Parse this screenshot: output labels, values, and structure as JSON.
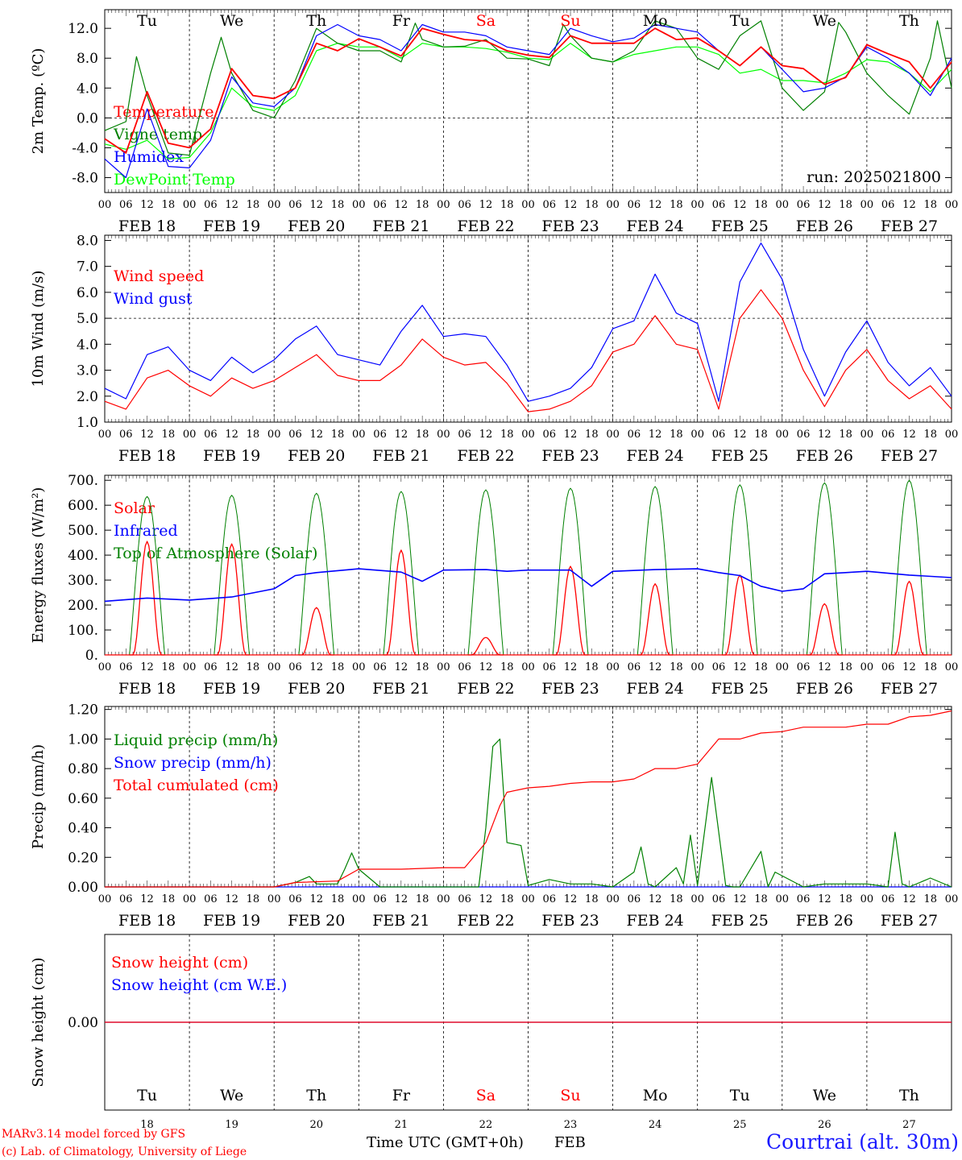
{
  "days": {
    "dates": [
      "FEB 18",
      "FEB 19",
      "FEB 20",
      "FEB 21",
      "FEB 22",
      "FEB 23",
      "FEB 24",
      "FEB 25",
      "FEB 26",
      "FEB 27"
    ],
    "weekdays": [
      "Tu",
      "We",
      "Th",
      "Fr",
      "Sa",
      "Su",
      "Mo",
      "Tu",
      "We",
      "Th"
    ],
    "day_numbers": [
      "18",
      "19",
      "20",
      "21",
      "22",
      "23",
      "24",
      "25",
      "26",
      "27"
    ],
    "hour_ticks": [
      "00",
      "06",
      "12",
      "18"
    ],
    "last_tick": "00",
    "weekend_color": "#ff0000",
    "weekday_color": "#000000",
    "weekend_indices": [
      4,
      5
    ]
  },
  "footer": {
    "model_line": "MARv3.14 model forced by GFS",
    "credit_line": "(c) Lab. of Climatology, University of Liege",
    "xlabel": "Time UTC (GMT+0h)",
    "month": "FEB",
    "location": "Courtrai (alt. 30m)"
  },
  "run_label": "run: 2025021800",
  "chart_data": [
    {
      "id": "temperature",
      "type": "line",
      "ylabel": "2m Temp. (ºC)",
      "ylim": [
        -10,
        14.5
      ],
      "yticks": [
        "-8.0",
        "-4.0",
        "0.0",
        "4.0",
        "8.0",
        "12.0"
      ],
      "reference_line": 0,
      "x_unit": "hours since FEB 18 00 UTC",
      "series": [
        {
          "name": "Temperature",
          "color": "#ff0000",
          "x": [
            0,
            6,
            12,
            18,
            24,
            30,
            36,
            42,
            48,
            54,
            60,
            66,
            72,
            78,
            84,
            90,
            96,
            102,
            108,
            114,
            120,
            126,
            132,
            138,
            144,
            150,
            156,
            162,
            168,
            174,
            180,
            186,
            192,
            198,
            204,
            210,
            216,
            222,
            228,
            234,
            240
          ],
          "values": [
            -2.8,
            -4.7,
            3.5,
            -3.4,
            -4,
            -1.5,
            6.6,
            3,
            2.6,
            4,
            10,
            9,
            10.6,
            9.5,
            8.3,
            12,
            11.2,
            10.5,
            10.3,
            9,
            8.4,
            8.1,
            11,
            10,
            10,
            10,
            12,
            10.5,
            10.7,
            9,
            7,
            9.5,
            7,
            6.6,
            4.5,
            5.4,
            9.8,
            8.6,
            7.5,
            4,
            7.5
          ]
        },
        {
          "name": "Vigne temp",
          "color": "#008000",
          "x": [
            0,
            6,
            9,
            12,
            18,
            24,
            30,
            33,
            36,
            42,
            48,
            54,
            60,
            66,
            72,
            78,
            84,
            88,
            90,
            96,
            102,
            108,
            114,
            120,
            126,
            130,
            132,
            138,
            144,
            150,
            156,
            162,
            168,
            174,
            180,
            186,
            192,
            198,
            204,
            208,
            210,
            216,
            222,
            228,
            234,
            236,
            240
          ],
          "values": [
            -1.7,
            -0.5,
            8.2,
            3,
            -4.7,
            -5,
            6,
            10.8,
            6,
            1,
            0,
            5,
            12,
            10,
            9,
            9,
            7.5,
            12.7,
            10.5,
            9.5,
            9.6,
            10.5,
            8,
            7.9,
            7,
            12.5,
            11,
            8,
            7.5,
            9,
            13,
            12,
            8,
            6.5,
            11,
            13,
            4,
            1,
            3.5,
            12.8,
            11.5,
            6,
            3,
            0.5,
            8,
            13,
            4
          ]
        },
        {
          "name": "Humidex",
          "color": "#0000ff",
          "x": [
            0,
            6,
            12,
            18,
            24,
            30,
            36,
            42,
            48,
            54,
            60,
            66,
            72,
            78,
            84,
            90,
            96,
            102,
            108,
            114,
            120,
            126,
            132,
            138,
            144,
            150,
            156,
            162,
            168,
            174,
            180,
            186,
            192,
            198,
            204,
            210,
            216,
            222,
            228,
            234,
            240
          ],
          "values": [
            -5.5,
            -8,
            1.2,
            -6.5,
            -6.7,
            -3,
            5.5,
            2,
            1.5,
            4,
            11,
            12.5,
            11,
            10.5,
            9,
            12.5,
            11.5,
            11.5,
            11,
            9.5,
            9,
            8.5,
            12,
            11,
            10.2,
            10.7,
            12.5,
            12,
            11.5,
            9,
            7,
            9.5,
            6.5,
            3.5,
            4,
            5.5,
            9.5,
            8,
            6,
            3,
            8
          ]
        },
        {
          "name": "DewPoint Temp",
          "color": "#00ff00",
          "x": [
            0,
            6,
            12,
            18,
            24,
            30,
            36,
            42,
            48,
            54,
            60,
            66,
            72,
            78,
            84,
            90,
            96,
            102,
            108,
            114,
            120,
            126,
            132,
            138,
            144,
            150,
            156,
            162,
            168,
            174,
            180,
            186,
            192,
            198,
            204,
            210,
            216,
            222,
            228,
            234,
            240
          ],
          "values": [
            -3.5,
            -4.2,
            -3,
            -5.5,
            -5.3,
            -2,
            4,
            1.5,
            1,
            3,
            9,
            10,
            9.5,
            9.5,
            8,
            10,
            9.5,
            9.5,
            9.3,
            8.8,
            8,
            7.8,
            10,
            8,
            7.5,
            8.5,
            9,
            9.5,
            9.5,
            8.5,
            6,
            6.5,
            5,
            5,
            4.7,
            6,
            7.8,
            7.5,
            6,
            3.5,
            6.5
          ]
        }
      ]
    },
    {
      "id": "wind",
      "type": "line",
      "ylabel": "10m Wind (m/s)",
      "ylim": [
        1,
        8.2
      ],
      "yticks": [
        "1.0",
        "2.0",
        "3.0",
        "4.0",
        "5.0",
        "6.0",
        "7.0",
        "8.0"
      ],
      "reference_line": 5,
      "x_unit": "hours since FEB 18 00 UTC",
      "series": [
        {
          "name": "Wind speed",
          "color": "#ff0000",
          "x": [
            0,
            6,
            12,
            18,
            24,
            30,
            36,
            42,
            48,
            54,
            60,
            66,
            72,
            78,
            84,
            90,
            96,
            102,
            108,
            114,
            120,
            126,
            132,
            138,
            144,
            150,
            156,
            162,
            168,
            174,
            180,
            186,
            192,
            198,
            204,
            210,
            216,
            222,
            228,
            234,
            240
          ],
          "values": [
            1.8,
            1.5,
            2.7,
            3,
            2.4,
            2,
            2.7,
            2.3,
            2.6,
            3.1,
            3.6,
            2.8,
            2.6,
            2.6,
            3.2,
            4.2,
            3.5,
            3.2,
            3.3,
            2.5,
            1.4,
            1.5,
            1.8,
            2.4,
            3.7,
            4,
            5.1,
            4,
            3.8,
            1.5,
            5,
            6.1,
            5,
            3,
            1.6,
            3,
            3.8,
            2.6,
            1.9,
            2.4,
            1.5
          ]
        },
        {
          "name": "Wind gust",
          "color": "#0000ff",
          "x": [
            0,
            6,
            12,
            18,
            24,
            30,
            36,
            42,
            48,
            54,
            60,
            66,
            72,
            78,
            84,
            90,
            96,
            102,
            108,
            114,
            120,
            126,
            132,
            138,
            144,
            150,
            156,
            162,
            168,
            174,
            180,
            186,
            192,
            198,
            204,
            210,
            216,
            222,
            228,
            234,
            240
          ],
          "values": [
            2.3,
            1.9,
            3.6,
            3.9,
            3,
            2.6,
            3.5,
            2.9,
            3.4,
            4.2,
            4.7,
            3.6,
            3.4,
            3.2,
            4.5,
            5.5,
            4.3,
            4.4,
            4.3,
            3.2,
            1.8,
            2,
            2.3,
            3.1,
            4.6,
            4.9,
            6.7,
            5.2,
            4.8,
            1.8,
            6.4,
            7.9,
            6.5,
            3.8,
            2,
            3.7,
            4.9,
            3.3,
            2.4,
            3.1,
            2
          ]
        }
      ]
    },
    {
      "id": "energy",
      "type": "line",
      "ylabel": "Energy fluxes (W/m²)",
      "ylim": [
        0,
        720
      ],
      "yticks": [
        "0.",
        "100.",
        "200.",
        "300.",
        "400.",
        "500.",
        "600.",
        "700."
      ],
      "x_unit": "hours since FEB 18 00 UTC",
      "series": [
        {
          "name": "Solar",
          "color": "#ff0000",
          "daily_peaks": [
            455,
            445,
            190,
            420,
            70,
            355,
            285,
            320,
            205,
            295
          ]
        },
        {
          "name": "Infrared",
          "color": "#0000ff",
          "x": [
            0,
            12,
            24,
            36,
            48,
            54,
            60,
            72,
            84,
            90,
            96,
            108,
            114,
            120,
            132,
            138,
            144,
            156,
            168,
            174,
            180,
            186,
            192,
            198,
            204,
            210,
            216,
            228,
            240
          ],
          "values": [
            215,
            228,
            220,
            232,
            265,
            318,
            330,
            345,
            332,
            295,
            340,
            342,
            335,
            340,
            340,
            275,
            335,
            342,
            345,
            330,
            318,
            275,
            255,
            265,
            325,
            330,
            335,
            320,
            310
          ]
        },
        {
          "name": "Top of Atmosphere (Solar)",
          "color": "#008000",
          "daily_peaks": [
            635,
            640,
            648,
            655,
            662,
            668,
            675,
            682,
            690,
            700
          ]
        }
      ]
    },
    {
      "id": "precip",
      "type": "line",
      "ylabel": "Precip (mm/h)",
      "ylim": [
        0,
        1.22
      ],
      "yticks": [
        "0.00",
        "0.20",
        "0.40",
        "0.60",
        "0.80",
        "1.00",
        "1.20"
      ],
      "x_unit": "hours since FEB 18 00 UTC",
      "series": [
        {
          "name": "Liquid precip (mm/h)",
          "color": "#008000",
          "x": [
            0,
            48,
            54,
            58,
            60,
            66,
            68,
            70,
            72,
            78,
            84,
            96,
            102,
            106,
            108,
            110,
            112,
            114,
            118,
            120,
            126,
            132,
            138,
            144,
            150,
            152,
            154,
            156,
            162,
            164,
            166,
            168,
            172,
            176,
            178,
            180,
            186,
            188,
            190,
            198,
            204,
            216,
            222,
            224,
            226,
            228,
            234,
            240
          ],
          "values": [
            0,
            0,
            0.03,
            0.07,
            0.02,
            0.02,
            0.12,
            0.23,
            0.12,
            0,
            0,
            0,
            0,
            0,
            0.4,
            0.95,
            1.0,
            0.3,
            0.28,
            0.01,
            0.05,
            0.02,
            0.02,
            0,
            0.1,
            0.27,
            0.02,
            0,
            0.13,
            0.02,
            0.35,
            0.01,
            0.74,
            0.01,
            0,
            0,
            0.24,
            0,
            0.1,
            0,
            0.02,
            0.02,
            0,
            0.37,
            0.02,
            0,
            0.06,
            0
          ]
        },
        {
          "name": "Snow precip (mm/h)",
          "color": "#0000ff",
          "x": [
            0,
            240
          ],
          "values": [
            0,
            0
          ]
        },
        {
          "name": "Total cumulated (cm)",
          "color": "#ff0000",
          "x": [
            0,
            48,
            54,
            66,
            72,
            84,
            96,
            102,
            108,
            112,
            114,
            120,
            126,
            132,
            138,
            144,
            150,
            156,
            162,
            168,
            174,
            180,
            186,
            192,
            198,
            204,
            210,
            216,
            222,
            228,
            234,
            240
          ],
          "values": [
            0,
            0,
            0.03,
            0.04,
            0.12,
            0.12,
            0.13,
            0.13,
            0.3,
            0.55,
            0.64,
            0.67,
            0.68,
            0.7,
            0.71,
            0.71,
            0.73,
            0.8,
            0.8,
            0.83,
            1.0,
            1.0,
            1.04,
            1.05,
            1.08,
            1.08,
            1.08,
            1.1,
            1.1,
            1.15,
            1.16,
            1.19
          ]
        }
      ]
    },
    {
      "id": "snow",
      "type": "line",
      "ylabel": "Snow height (cm)",
      "ylim": [
        -1,
        1
      ],
      "yticks": [
        "0.00"
      ],
      "x_unit": "hours since FEB 18 00 UTC",
      "series": [
        {
          "name": "Snow height (cm)",
          "color": "#ff0000",
          "x": [
            0,
            240
          ],
          "values": [
            0,
            0
          ]
        },
        {
          "name": "Snow height (cm W.E.)",
          "color": "#0000ff",
          "x": [
            0,
            240
          ],
          "values": [
            0,
            0
          ]
        }
      ]
    }
  ]
}
